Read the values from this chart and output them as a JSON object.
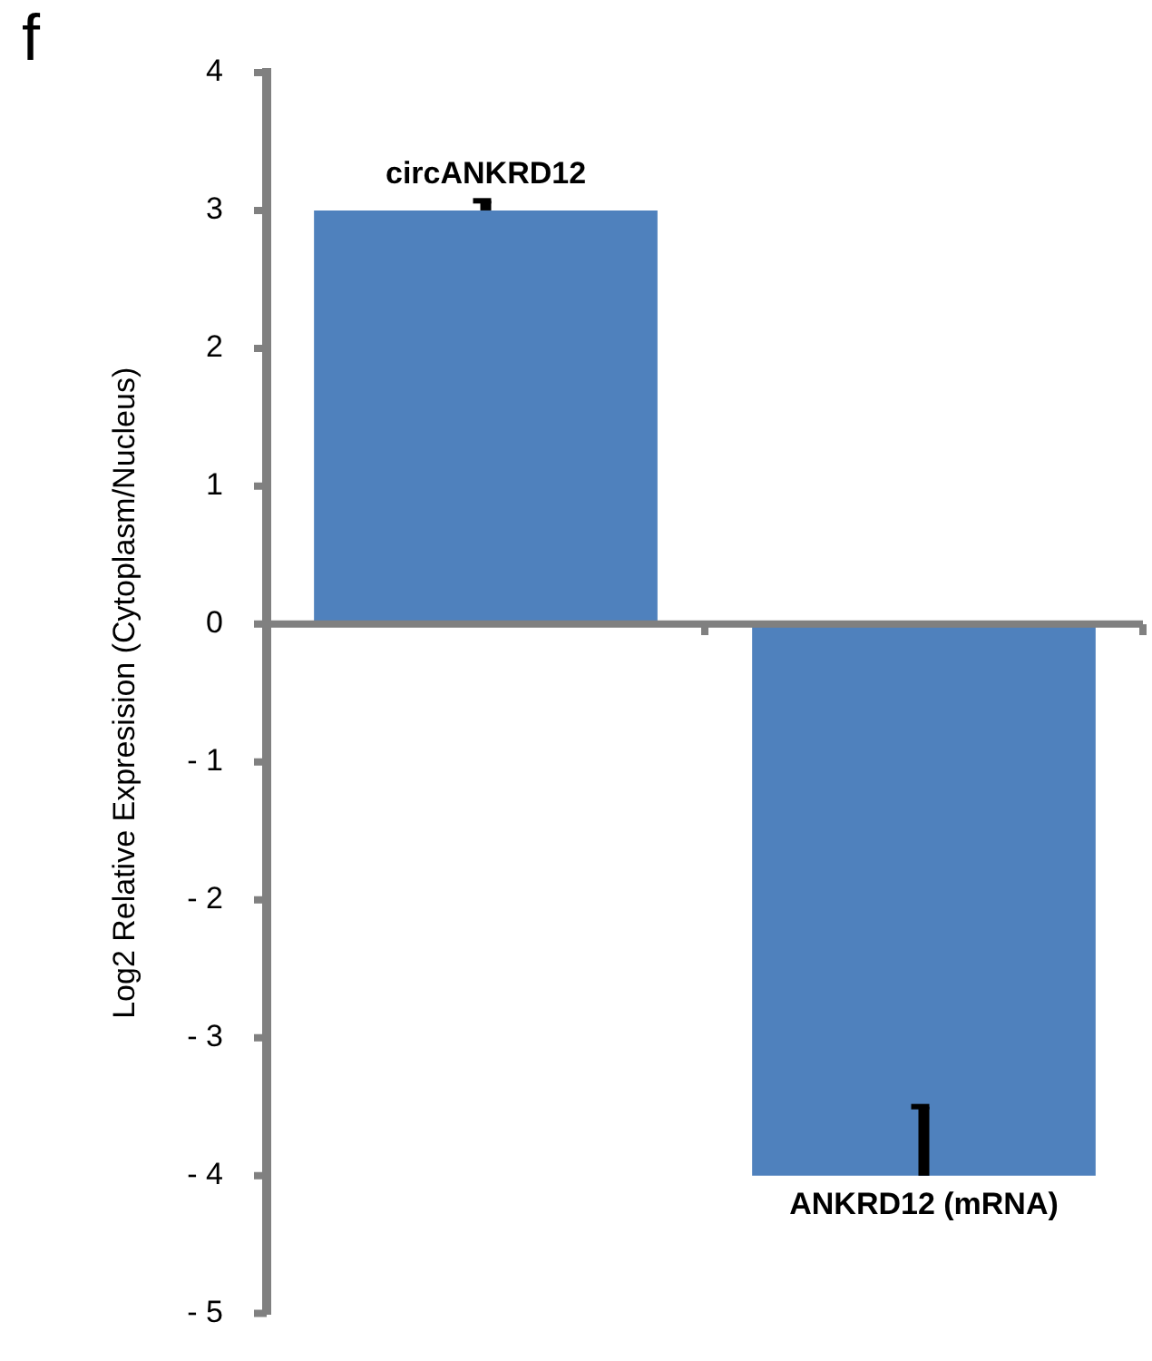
{
  "chart_data": {
    "type": "bar",
    "ylabel": "Log2 Relative Expresision (Cytoplasm/Nucleus)",
    "categories": [
      "circANKRD12",
      "ANKRD12 (mRNA)"
    ],
    "values": [
      3,
      -4
    ],
    "errors": [
      [
        3,
        3.07
      ],
      [
        -4,
        -3.5
      ]
    ],
    "color": "#4f81bd",
    "ylim": [
      -5,
      4
    ],
    "yticks": [
      -5,
      -4,
      -3,
      -2,
      -1,
      0,
      1,
      2,
      3,
      4
    ],
    "grid": false,
    "legend": false,
    "ref_lines": [
      {
        "axis": "y",
        "value": 0,
        "color": "#808080"
      }
    ],
    "annotations": [
      "f"
    ]
  }
}
